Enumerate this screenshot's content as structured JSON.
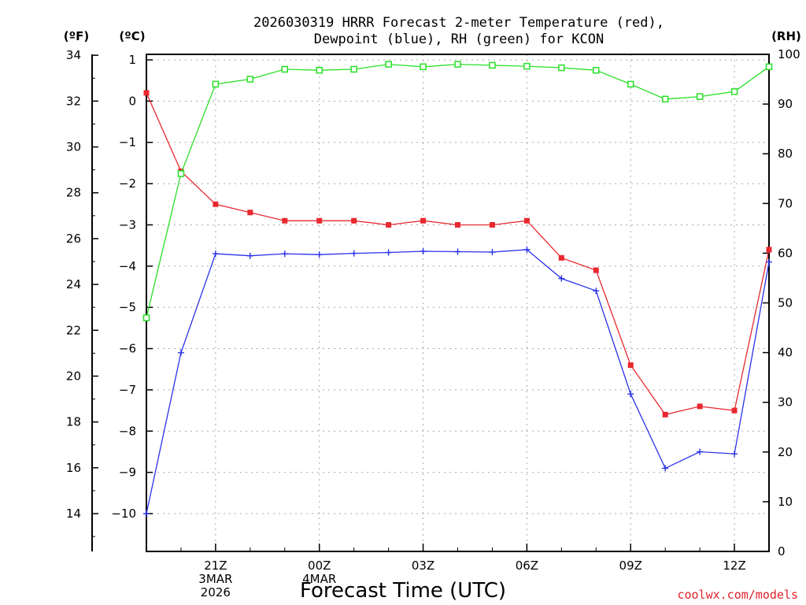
{
  "chart_data": {
    "type": "line",
    "title": "2026030319 HRRR Forecast 2-meter Temperature (red),",
    "title_line2": "Dewpoint (blue), RH (green) for KCON",
    "xlabel": "Forecast Time (UTC)",
    "credit": "coolwx.com/models",
    "units": {
      "fahrenheit": "(ºF)",
      "celsius": "(ºC)",
      "rh": "(RH)"
    },
    "x_hours": [
      0,
      1,
      2,
      3,
      4,
      5,
      6,
      7,
      8,
      9,
      10,
      11,
      12,
      13,
      14,
      15,
      16,
      17,
      18
    ],
    "x_tick_labels": [
      {
        "hour": 2,
        "lines": [
          "21Z",
          "3MAR",
          "2026"
        ]
      },
      {
        "hour": 5,
        "lines": [
          "00Z",
          "4MAR"
        ]
      },
      {
        "hour": 8,
        "lines": [
          "03Z"
        ]
      },
      {
        "hour": 11,
        "lines": [
          "06Z"
        ]
      },
      {
        "hour": 14,
        "lines": [
          "09Z"
        ]
      },
      {
        "hour": 17,
        "lines": [
          "12Z"
        ]
      }
    ],
    "celsius_axis": {
      "ylim": [
        -11,
        1
      ],
      "ticks": [
        1,
        0,
        -1,
        -2,
        -3,
        -4,
        -5,
        -6,
        -7,
        -8,
        -9,
        -10
      ]
    },
    "fahrenheit_axis": {
      "ticks": [
        34,
        32,
        30,
        28,
        26,
        24,
        22,
        20,
        18,
        16,
        14
      ]
    },
    "rh_axis": {
      "ylim": [
        0,
        100
      ],
      "ticks": [
        100,
        90,
        80,
        70,
        60,
        50,
        40,
        30,
        20,
        10,
        0
      ]
    },
    "series": [
      {
        "name": "Temperature",
        "color": "#e8282f",
        "axis": "celsius",
        "marker": "filled-square",
        "values": [
          0.2,
          -1.7,
          -2.5,
          -2.7,
          -2.9,
          -2.9,
          -2.9,
          -3.0,
          -2.9,
          -3.0,
          -3.0,
          -2.9,
          -3.8,
          -4.1,
          -6.4,
          -7.6,
          -7.4,
          -7.5,
          -3.6
        ]
      },
      {
        "name": "Dewpoint",
        "color": "#2a32e8",
        "axis": "celsius",
        "marker": "plus",
        "values": [
          -10.0,
          -6.1,
          -3.7,
          -3.75,
          -3.7,
          -3.72,
          -3.69,
          -3.67,
          -3.64,
          -3.65,
          -3.66,
          -3.6,
          -4.3,
          -4.6,
          -7.1,
          -8.9,
          -8.5,
          -8.55,
          -3.9
        ]
      },
      {
        "name": "RH",
        "color": "#28e028",
        "axis": "rh",
        "marker": "open-square",
        "values": [
          47,
          76,
          94,
          95,
          97,
          96.8,
          97,
          98,
          97.5,
          98,
          97.8,
          97.6,
          97.3,
          96.8,
          94,
          91,
          91.5,
          92.5,
          97.5
        ]
      }
    ]
  }
}
